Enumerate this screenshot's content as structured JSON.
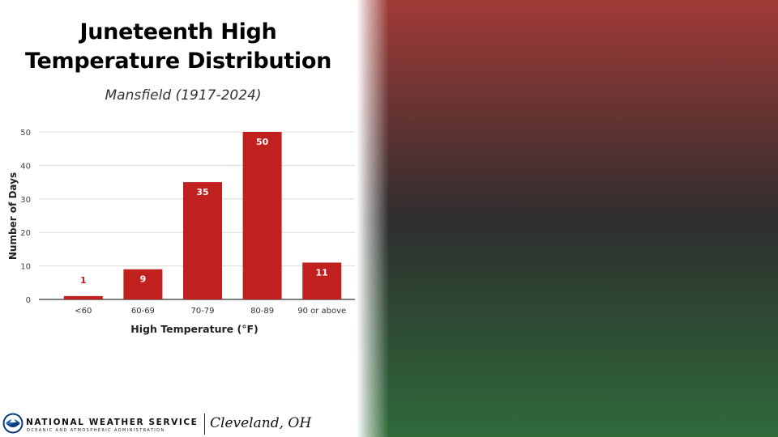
{
  "header": {
    "title_line_1": "Juneteenth High",
    "title_line_2": "Temperature Distribution",
    "subtitle": "Mansfield (1917-2024)"
  },
  "chart_data": {
    "type": "bar",
    "categories": [
      "<60",
      "60-69",
      "70-79",
      "80-89",
      "90 or above"
    ],
    "values": [
      1,
      9,
      35,
      50,
      11
    ],
    "data_labels": [
      "1",
      "9",
      "35",
      "50",
      "11"
    ],
    "xlabel": "High Temperature (°F)",
    "ylabel": "Number of Days",
    "ylim": [
      0,
      50
    ],
    "yticks": [
      0,
      10,
      20,
      30,
      40,
      50
    ],
    "grid": true,
    "bar_color": "#c0211f",
    "label_color_inside": "#ffffff",
    "label_color_outside": "#c0211f"
  },
  "footer": {
    "agency_name": "NATIONAL WEATHER SERVICE",
    "agency_subtitle": "OCEANIC AND ATMOSPHERIC ADMINISTRATION",
    "office": "Cleveland, OH",
    "logo_icon": "noaa-logo-icon"
  },
  "background": {
    "gradient_colors": [
      "#a03a36",
      "#2e2e2e",
      "#2f6a3a"
    ]
  }
}
